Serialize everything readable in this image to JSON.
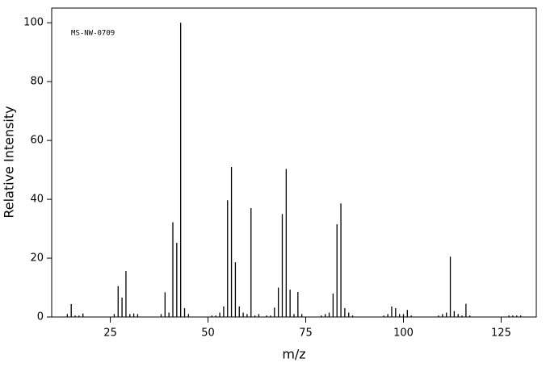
{
  "chart_data": {
    "type": "stem",
    "annotation": "MS-NW-0709",
    "xlabel": "m/z",
    "ylabel": "Relative Intensity",
    "color": "#000000",
    "x": [
      14,
      15,
      16,
      17,
      18,
      26,
      27,
      28,
      29,
      30,
      31,
      32,
      38,
      39,
      40,
      41,
      42,
      43,
      44,
      45,
      51,
      52,
      53,
      54,
      55,
      56,
      57,
      58,
      59,
      60,
      61,
      62,
      63,
      65,
      66,
      67,
      68,
      69,
      70,
      71,
      72,
      73,
      74,
      79,
      80,
      81,
      82,
      83,
      84,
      85,
      86,
      87,
      95,
      96,
      97,
      98,
      99,
      100,
      101,
      102,
      109,
      110,
      111,
      112,
      113,
      114,
      115,
      116,
      117,
      127,
      128,
      129,
      130
    ],
    "values": [
      1,
      4.4,
      0.5,
      0.5,
      1.2,
      1,
      10.5,
      6.6,
      15.6,
      1,
      1.2,
      1,
      1,
      8.4,
      1.5,
      32.2,
      25.2,
      100,
      3,
      1,
      0.5,
      0.5,
      1.5,
      3.6,
      39.7,
      51,
      18.6,
      3.6,
      1.5,
      1,
      37,
      0.5,
      1,
      0.5,
      0.5,
      3.2,
      10,
      35,
      50.3,
      9.3,
      1,
      8.5,
      1,
      0.5,
      1,
      1.5,
      8,
      31.5,
      38.6,
      3,
      1.5,
      0.5,
      0.5,
      1,
      3.6,
      3,
      1,
      1,
      2.4,
      0.5,
      0.5,
      1,
      1.5,
      20.5,
      2,
      1,
      0.5,
      4.5,
      0.5,
      0.5,
      0.5,
      0.5,
      0.5
    ],
    "xlim": [
      10,
      134
    ],
    "xticks": [
      25,
      50,
      75,
      100,
      125
    ],
    "ylim": [
      0,
      105
    ],
    "yticks": [
      0,
      20,
      40,
      60,
      80,
      100
    ]
  }
}
